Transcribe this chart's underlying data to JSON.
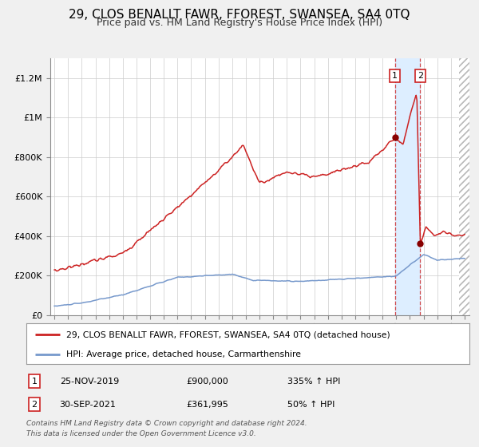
{
  "title_line1": "29, CLOS BENALLT FAWR, FFOREST, SWANSEA, SA4 0TQ",
  "title_line2": "Price paid vs. HM Land Registry's House Price Index (HPI)",
  "title_fontsize": 11,
  "subtitle_fontsize": 9,
  "x_start_year": 1995,
  "x_end_year": 2025,
  "y_min": 0,
  "y_max": 1300000,
  "y_ticks": [
    0,
    200000,
    400000,
    600000,
    800000,
    1000000,
    1200000
  ],
  "y_tick_labels": [
    "£0",
    "£200K",
    "£400K",
    "£600K",
    "£800K",
    "£1M",
    "£1.2M"
  ],
  "hpi_color": "#7799cc",
  "price_color": "#cc2222",
  "marker_color": "#880000",
  "vline_color": "#cc2222",
  "highlight_color": "#ddeeff",
  "transaction1": {
    "date_num": 2019.9,
    "price": 900000,
    "label": "1",
    "date_str": "25-NOV-2019",
    "price_str": "£900,000",
    "hpi_str": "335% ↑ HPI"
  },
  "transaction2": {
    "date_num": 2021.75,
    "price": 361995,
    "label": "2",
    "date_str": "30-SEP-2021",
    "price_str": "£361,995",
    "hpi_str": "50% ↑ HPI"
  },
  "legend_line1": "29, CLOS BENALLT FAWR, FFOREST, SWANSEA, SA4 0TQ (detached house)",
  "legend_line2": "HPI: Average price, detached house, Carmarthenshire",
  "footer_line1": "Contains HM Land Registry data © Crown copyright and database right 2024.",
  "footer_line2": "This data is licensed under the Open Government Licence v3.0.",
  "bg_color": "#f0f0f0",
  "plot_bg_color": "#ffffff",
  "grid_color": "#cccccc",
  "legend_bg": "#ffffff",
  "box_edge_color": "#cc2222"
}
